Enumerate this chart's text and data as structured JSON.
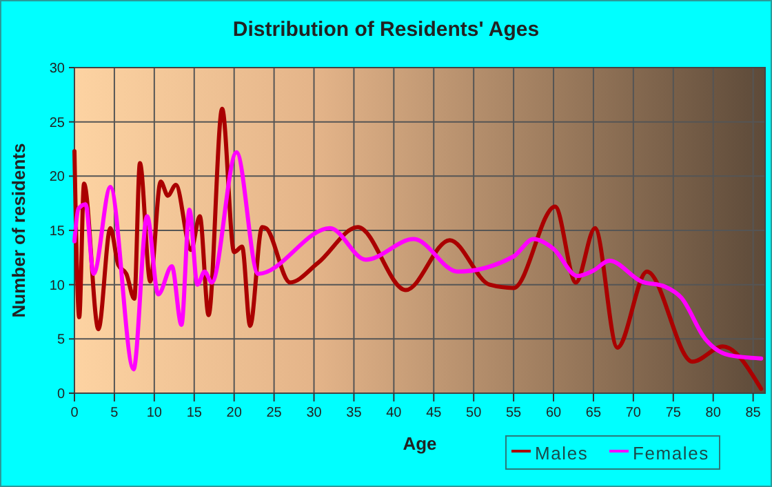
{
  "chart_data": {
    "type": "line",
    "title": "Distribution of Residents' Ages",
    "xlabel": "Age",
    "ylabel": "Number of residents",
    "xlim": [
      0,
      86.5
    ],
    "ylim": [
      0,
      30
    ],
    "xticks": [
      0,
      5,
      10,
      15,
      20,
      25,
      30,
      35,
      40,
      45,
      50,
      55,
      60,
      65,
      70,
      75,
      80,
      85
    ],
    "yticks": [
      0,
      5,
      10,
      15,
      20,
      25,
      30
    ],
    "grid": true,
    "legend": "bottom",
    "marker": "none",
    "line_style": "solid",
    "series": [
      {
        "name": "Males",
        "color": "#aa0000",
        "x": [
          0,
          0.6,
          1.2,
          3,
          4.5,
          5.5,
          6.5,
          7.5,
          8.2,
          9.5,
          10.8,
          11.7,
          12.7,
          14.6,
          15.7,
          16.8,
          18.5,
          20,
          21,
          22,
          23.5,
          24,
          27,
          30.5,
          35.5,
          41.5,
          47,
          52,
          55,
          60.2,
          62.8,
          65.2,
          68,
          71.7,
          77.4,
          81.2,
          86
        ],
        "values": [
          22.3,
          7,
          19.3,
          5.9,
          15.2,
          11.8,
          11,
          8.7,
          21.2,
          10.3,
          19.5,
          18.2,
          19.2,
          13.2,
          16.3,
          7.2,
          26.2,
          13,
          13.5,
          6.2,
          15.3,
          15.2,
          10.2,
          12,
          15.3,
          9.5,
          14.1,
          10,
          9.7,
          17.2,
          10.2,
          15.2,
          4.2,
          11.2,
          2.9,
          4.3,
          0.4
        ]
      },
      {
        "name": "Females",
        "color": "#ff00ff",
        "x": [
          0,
          0.5,
          1.4,
          2.4,
          4.5,
          7.4,
          9.1,
          10.5,
          12.2,
          13.4,
          14.4,
          15.4,
          16.3,
          17.2,
          20.3,
          23,
          32,
          36.5,
          42.5,
          48,
          55,
          57.5,
          60,
          63,
          65,
          67,
          71,
          74,
          76,
          79,
          82,
          86
        ],
        "values": [
          14,
          17,
          17.4,
          11,
          19,
          2.2,
          16.3,
          9.1,
          11.7,
          6.3,
          16.9,
          10,
          11.2,
          10.2,
          22.2,
          11,
          15.2,
          12.3,
          14.2,
          11.2,
          12.6,
          14.2,
          13.3,
          10.8,
          11.3,
          12.2,
          10.3,
          9.8,
          8.8,
          5,
          3.5,
          3.2
        ]
      }
    ]
  }
}
